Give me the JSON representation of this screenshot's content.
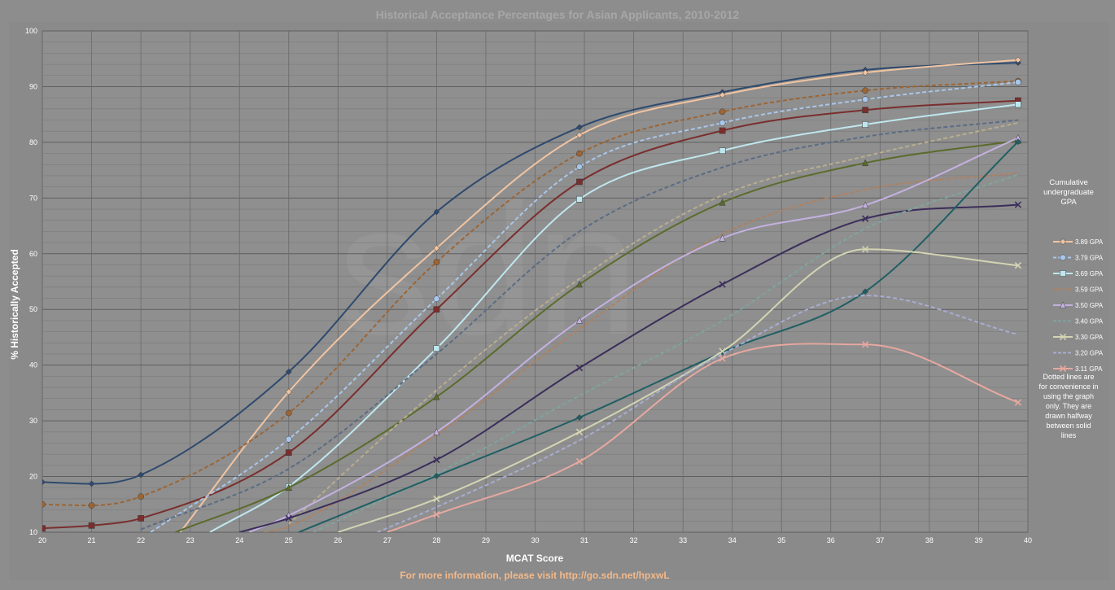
{
  "chart_data": {
    "type": "line",
    "title": "Historical Acceptance Percentages for Asian Applicants, 2010-2012",
    "xlabel": "MCAT Score",
    "ylabel": "% Historically Accepted",
    "xlim": [
      20,
      40
    ],
    "ylim": [
      10,
      100
    ],
    "x_ticks": [
      "20",
      "21",
      "22",
      "23",
      "24",
      "25",
      "26",
      "27",
      "28",
      "29",
      "30",
      "31",
      "32",
      "33",
      "34",
      "35",
      "36",
      "37",
      "38",
      "39",
      "40"
    ],
    "y_ticks": [
      "10",
      "20",
      "30",
      "40",
      "50",
      "60",
      "70",
      "80",
      "90",
      "100"
    ],
    "grid": true,
    "legend_placement": "right",
    "legend_title": "Cumulative undergraduate GPA",
    "legend_note": "Dotted lines are for convenience in using the graph only. They are drawn halfway between solid lines",
    "footer": "For more information, please visit http://go.sdn.net/hpxwL",
    "watermark": "sdn",
    "series": [
      {
        "name": "",
        "color": "#2e4a6e",
        "dash": false,
        "marker": "diamond",
        "show_in_legend": false,
        "x": [
          20,
          21,
          22,
          25,
          28,
          30.9,
          33.8,
          36.7,
          39.8
        ],
        "y": [
          19,
          18.7,
          20.3,
          38.8,
          67.5,
          82.7,
          89,
          93,
          94.3
        ]
      },
      {
        "name": "3.89 GPA",
        "color": "#f0c4a2",
        "dash": false,
        "marker": "diamond",
        "show_in_legend": true,
        "x": [
          22.8,
          25,
          28,
          30.9,
          33.8,
          36.7,
          39.8
        ],
        "y": [
          10,
          35.2,
          61,
          81.3,
          88.5,
          92.5,
          94.8
        ]
      },
      {
        "name": "",
        "color": "#9c6535",
        "dash": true,
        "marker": "circle",
        "show_in_legend": false,
        "x": [
          20,
          21,
          22,
          25,
          28,
          30.9,
          33.8,
          36.7,
          39.8
        ],
        "y": [
          15,
          14.8,
          16.4,
          31.4,
          58.5,
          78,
          85.5,
          89.3,
          91
        ]
      },
      {
        "name": "",
        "color": "#7a2e2e",
        "dash": false,
        "marker": "square",
        "show_in_legend": false,
        "x": [
          20,
          21,
          22,
          25,
          28,
          30.9,
          33.8,
          36.7,
          39.8
        ],
        "y": [
          10.7,
          11.2,
          12.5,
          24.3,
          50,
          72.9,
          82.1,
          85.8,
          87.5
        ]
      },
      {
        "name": "3.79 GPA",
        "color": "#a9c6ea",
        "dash": true,
        "marker": "circle",
        "show_in_legend": true,
        "x": [
          22.2,
          25,
          28,
          30.9,
          33.8,
          36.7,
          39.8
        ],
        "y": [
          10,
          26.7,
          51.9,
          75.6,
          83.5,
          87.7,
          90.8
        ]
      },
      {
        "name": "3.69 GPA",
        "color": "#bfe7ee",
        "dash": false,
        "marker": "square",
        "show_in_legend": true,
        "x": [
          23.4,
          25,
          28,
          30.9,
          33.8,
          36.7,
          39.8
        ],
        "y": [
          10,
          18.2,
          43,
          69.8,
          78.5,
          83.2,
          86.8
        ]
      },
      {
        "name": "3.59 GPA",
        "color": "#b08060",
        "dash": true,
        "marker": "none",
        "show_in_legend": true,
        "x": [
          24.5,
          25,
          28,
          30.9,
          33.8,
          36.7,
          39.8
        ],
        "y": [
          10,
          11,
          27.5,
          46.5,
          63.5,
          71.5,
          74.5
        ]
      },
      {
        "name": "",
        "color": "#5a6c86",
        "dash": true,
        "marker": "none",
        "show_in_legend": false,
        "x": [
          22,
          25,
          28,
          30.9,
          33.8,
          36.7,
          39.8
        ],
        "y": [
          10.5,
          21.4,
          42,
          64,
          75.5,
          81,
          84
        ]
      },
      {
        "name": "",
        "color": "#5b6b2c",
        "dash": false,
        "marker": "triangle",
        "show_in_legend": false,
        "x": [
          22.7,
          25,
          28,
          30.9,
          33.8,
          36.7,
          39.8
        ],
        "y": [
          10,
          18,
          34.3,
          54.5,
          69.2,
          76.3,
          80.3
        ]
      },
      {
        "name": "",
        "color": "#b8ad8e",
        "dash": true,
        "marker": "none",
        "show_in_legend": false,
        "x": [
          25,
          28,
          30.9,
          33.8,
          36.7,
          39.8
        ],
        "y": [
          11.5,
          35.5,
          55.5,
          70.5,
          77.5,
          83.5
        ]
      },
      {
        "name": "3.50 GPA",
        "color": "#c3b1e0",
        "dash": false,
        "marker": "triangle",
        "show_in_legend": true,
        "x": [
          24.2,
          25,
          28,
          30.9,
          33.8,
          36.7,
          39.8
        ],
        "y": [
          10,
          13,
          28,
          48,
          62.8,
          68.7,
          80.8
        ]
      },
      {
        "name": "",
        "color": "#3c2e5a",
        "dash": false,
        "marker": "x",
        "show_in_legend": false,
        "x": [
          24,
          25,
          28,
          30.9,
          33.8,
          36.7,
          39.8
        ],
        "y": [
          10,
          12.5,
          23,
          39.5,
          54.5,
          66.3,
          68.8
        ]
      },
      {
        "name": "3.40 GPA",
        "color": "#7fa49e",
        "dash": true,
        "marker": "none",
        "show_in_legend": true,
        "x": [
          25.5,
          28,
          30.9,
          33.8,
          36.7,
          39.8
        ],
        "y": [
          10,
          20.5,
          34.5,
          48,
          64.5,
          74.2
        ]
      },
      {
        "name": "",
        "color": "#1f5f64",
        "dash": false,
        "marker": "diamond",
        "show_in_legend": false,
        "x": [
          25.2,
          28,
          30.9,
          33.8,
          36.7,
          39.8
        ],
        "y": [
          10,
          20.1,
          30.6,
          42.3,
          53.2,
          80.1
        ]
      },
      {
        "name": "3.30 GPA",
        "color": "#d3d4b2",
        "dash": false,
        "marker": "x",
        "show_in_legend": true,
        "x": [
          26,
          28,
          30.9,
          33.8,
          36.7,
          39.8
        ],
        "y": [
          10,
          16,
          28,
          42.5,
          60.8,
          57.9
        ]
      },
      {
        "name": "3.20 GPA",
        "color": "#a8acd2",
        "dash": true,
        "marker": "none",
        "show_in_legend": true,
        "x": [
          26.8,
          28,
          30.9,
          33.8,
          36.7,
          39.8
        ],
        "y": [
          10,
          14.5,
          26.5,
          42,
          52.5,
          45.5
        ]
      },
      {
        "name": "3.11 GPA",
        "color": "#e6a8a0",
        "dash": false,
        "marker": "x",
        "show_in_legend": true,
        "x": [
          27,
          28,
          30.9,
          33.8,
          36.7,
          39.8
        ],
        "y": [
          10,
          13.2,
          22.7,
          41.2,
          43.7,
          33.3
        ]
      }
    ]
  }
}
